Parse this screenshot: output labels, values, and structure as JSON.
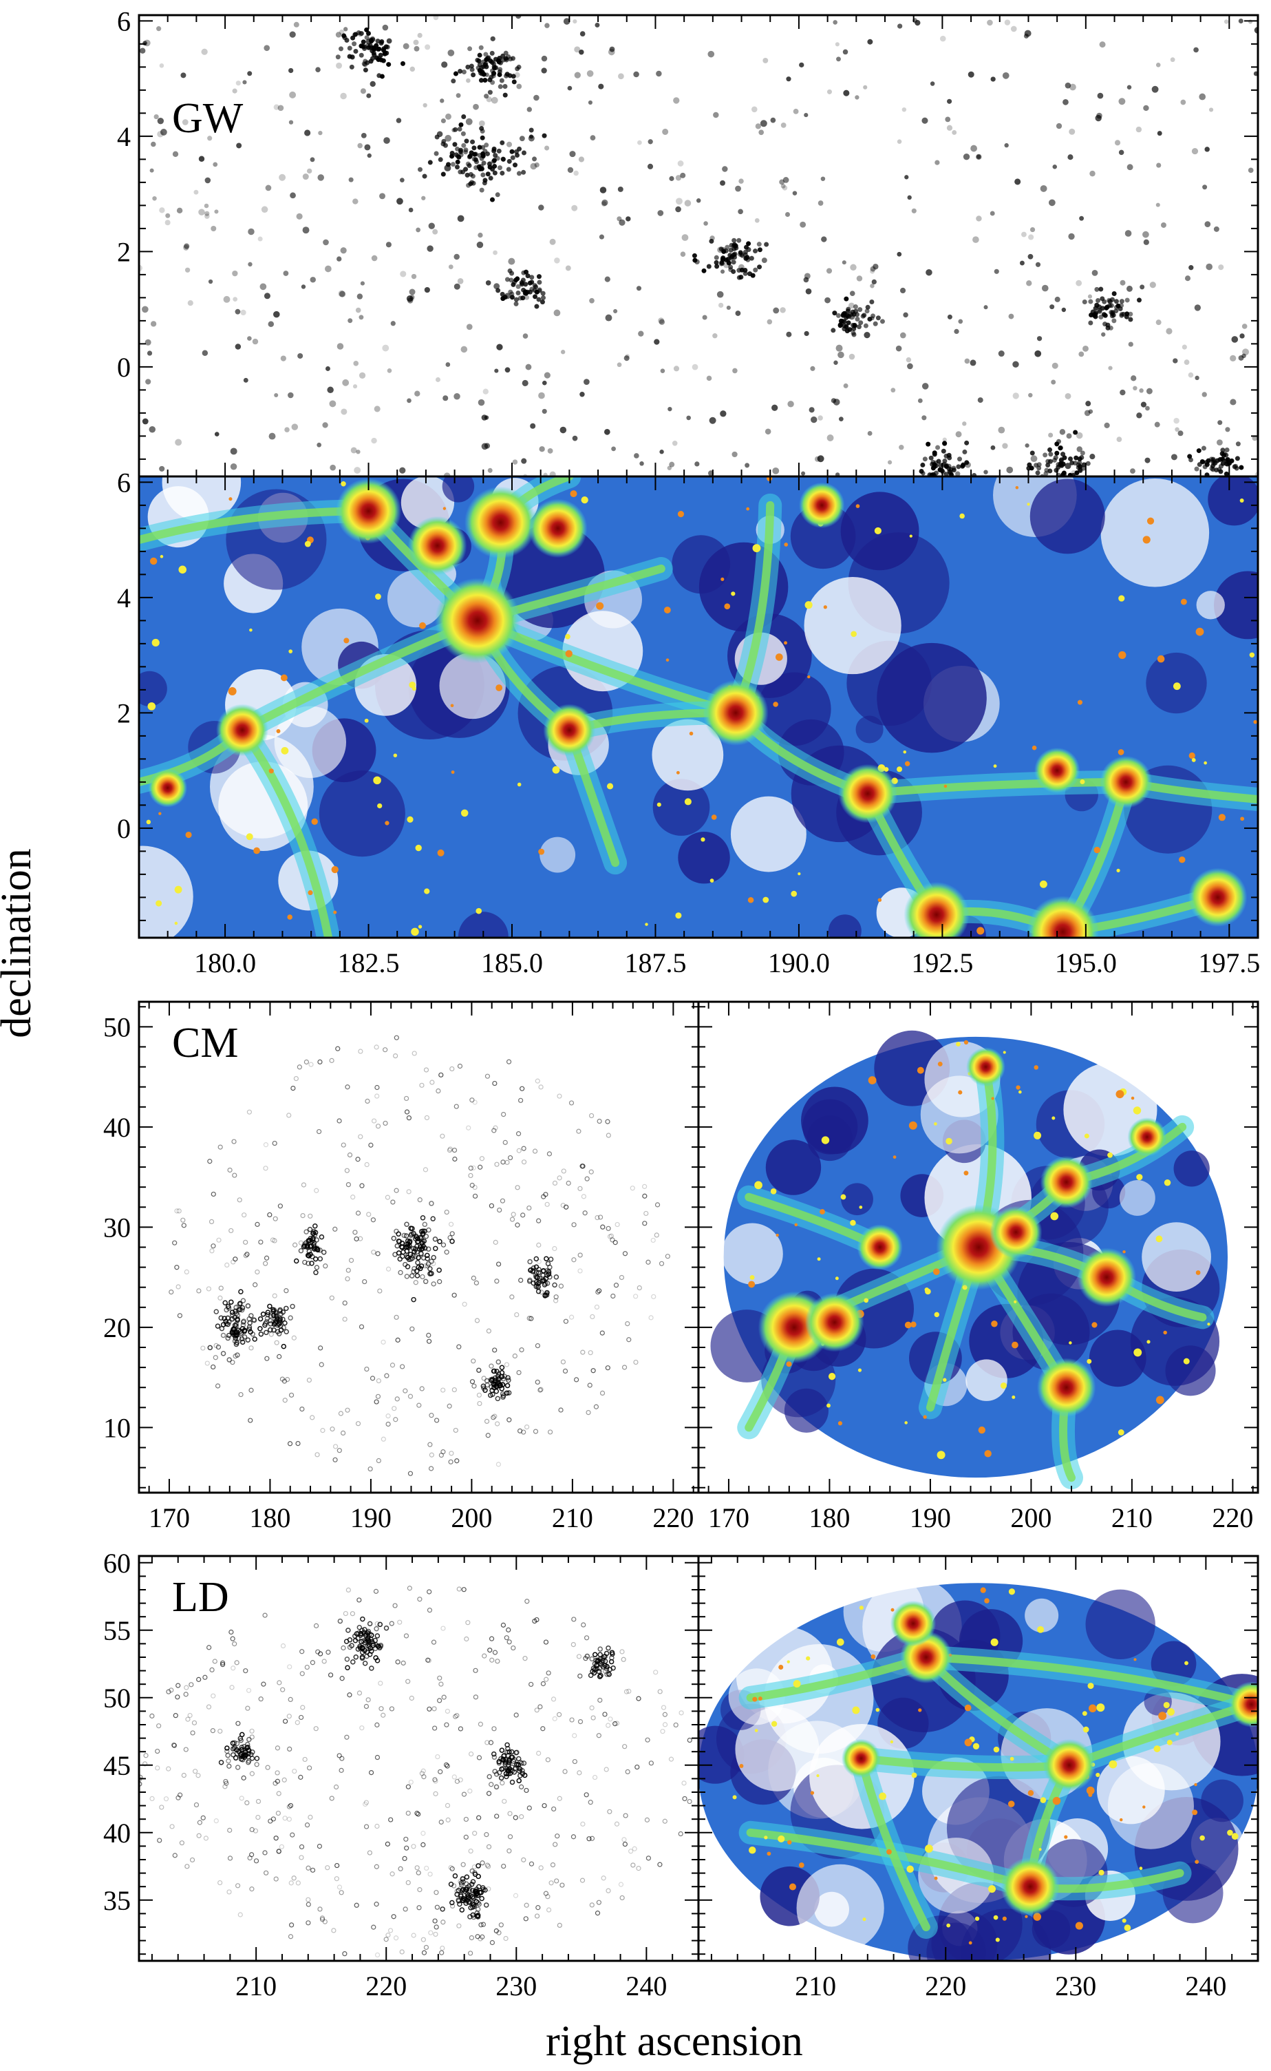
{
  "figure": {
    "ylabel": "declination",
    "xlabel": "right ascension"
  },
  "colors": {
    "point": "#000000",
    "void": "#ffffff",
    "dark_blue": "#1c1f8c",
    "mid_blue": "#2f6fd2",
    "cyan": "#3fd0e6",
    "green": "#7fe060",
    "yellow": "#f5ee3a",
    "orange": "#f08a1e",
    "red": "#b81414"
  },
  "chart_data": [
    {
      "type": "scatter",
      "panel": "GW-galaxies",
      "label": "GW",
      "xlim": [
        178.5,
        198.0
      ],
      "ylim": [
        -1.9,
        6.1
      ],
      "xticks": [],
      "yticks": [
        0,
        2,
        4,
        6
      ],
      "clusters": [
        {
          "x": 184.4,
          "y": 3.6,
          "weight": 1.0
        },
        {
          "x": 182.5,
          "y": 5.5,
          "weight": 0.5
        },
        {
          "x": 184.6,
          "y": 5.2,
          "weight": 0.6
        },
        {
          "x": 188.9,
          "y": 1.9,
          "weight": 0.5
        },
        {
          "x": 185.2,
          "y": 1.4,
          "weight": 0.3
        },
        {
          "x": 195.4,
          "y": 1.0,
          "weight": 0.4
        },
        {
          "x": 194.6,
          "y": -1.7,
          "weight": 0.5
        },
        {
          "x": 192.5,
          "y": -1.7,
          "weight": 0.4
        },
        {
          "x": 197.3,
          "y": -1.7,
          "weight": 0.3
        },
        {
          "x": 190.9,
          "y": 0.8,
          "weight": 0.3
        }
      ]
    },
    {
      "type": "heatmap",
      "panel": "GW-density",
      "label": "",
      "xlim": [
        178.5,
        198.0
      ],
      "ylim": [
        -1.9,
        6.1
      ],
      "xticks": [
        180.0,
        182.5,
        185.0,
        187.5,
        190.0,
        192.5,
        195.0,
        197.5
      ],
      "xticklabels": [
        "180.0",
        "182.5",
        "185.0",
        "187.5",
        "190.0",
        "192.5",
        "195.0",
        "197.5"
      ],
      "yticks": [
        0,
        2,
        4,
        6
      ],
      "nodes": [
        {
          "x": 184.4,
          "y": 3.6,
          "weight": 1.0
        },
        {
          "x": 182.5,
          "y": 5.5,
          "weight": 0.7
        },
        {
          "x": 184.8,
          "y": 5.3,
          "weight": 0.8
        },
        {
          "x": 185.8,
          "y": 5.2,
          "weight": 0.6
        },
        {
          "x": 183.7,
          "y": 4.9,
          "weight": 0.6
        },
        {
          "x": 188.9,
          "y": 2.0,
          "weight": 0.7
        },
        {
          "x": 180.3,
          "y": 1.7,
          "weight": 0.5
        },
        {
          "x": 186.0,
          "y": 1.7,
          "weight": 0.5
        },
        {
          "x": 191.2,
          "y": 0.6,
          "weight": 0.6
        },
        {
          "x": 195.7,
          "y": 0.8,
          "weight": 0.5
        },
        {
          "x": 194.5,
          "y": 1.0,
          "weight": 0.4
        },
        {
          "x": 194.6,
          "y": -1.8,
          "weight": 0.8
        },
        {
          "x": 192.4,
          "y": -1.5,
          "weight": 0.7
        },
        {
          "x": 197.3,
          "y": -1.2,
          "weight": 0.6
        },
        {
          "x": 190.4,
          "y": 5.6,
          "weight": 0.4
        },
        {
          "x": 179.0,
          "y": 0.7,
          "weight": 0.3
        }
      ],
      "filaments": [
        [
          184.4,
          3.6,
          188.9,
          2.0
        ],
        [
          188.9,
          2.0,
          191.2,
          0.6
        ],
        [
          191.2,
          0.6,
          195.7,
          0.8
        ],
        [
          195.7,
          0.8,
          198.0,
          0.5
        ],
        [
          184.4,
          3.6,
          182.5,
          5.5
        ],
        [
          184.4,
          3.6,
          184.8,
          5.3
        ],
        [
          184.8,
          5.3,
          186.0,
          6.1
        ],
        [
          184.4,
          3.6,
          180.3,
          1.7
        ],
        [
          180.3,
          1.7,
          178.5,
          0.8
        ],
        [
          180.3,
          1.7,
          181.8,
          -1.9
        ],
        [
          184.4,
          3.6,
          186.0,
          1.7
        ],
        [
          186.0,
          1.7,
          186.8,
          -0.6
        ],
        [
          191.2,
          0.6,
          192.4,
          -1.5
        ],
        [
          192.4,
          -1.5,
          194.6,
          -1.8
        ],
        [
          194.6,
          -1.8,
          197.3,
          -1.2
        ],
        [
          194.6,
          -1.8,
          195.7,
          0.8
        ],
        [
          188.9,
          2.0,
          189.5,
          5.6
        ],
        [
          186.0,
          1.7,
          188.9,
          2.0
        ],
        [
          182.5,
          5.5,
          178.5,
          5.0
        ],
        [
          184.4,
          3.6,
          187.6,
          4.5
        ]
      ]
    },
    {
      "type": "scatter",
      "panel": "CM-galaxies",
      "label": "CM",
      "xlim": [
        167,
        222.5
      ],
      "ylim": [
        3.5,
        52.5
      ],
      "xticks": [
        170,
        180,
        190,
        200,
        210,
        220
      ],
      "yticks": [
        10,
        20,
        30,
        40,
        50
      ],
      "footprint": {
        "center": [
          194.5,
          27
        ],
        "radius_x": 25,
        "radius_y": 22
      },
      "clusters": [
        {
          "x": 194.6,
          "y": 27.8,
          "weight": 1.0
        },
        {
          "x": 176.5,
          "y": 20.0,
          "weight": 0.7
        },
        {
          "x": 180.5,
          "y": 20.5,
          "weight": 0.4
        },
        {
          "x": 202.5,
          "y": 14.5,
          "weight": 0.4
        },
        {
          "x": 207.0,
          "y": 25.0,
          "weight": 0.3
        },
        {
          "x": 184.0,
          "y": 28.0,
          "weight": 0.3
        }
      ]
    },
    {
      "type": "heatmap",
      "panel": "CM-density",
      "label": "",
      "xlim": [
        167,
        222.5
      ],
      "ylim": [
        3.5,
        52.5
      ],
      "xticks": [
        170,
        180,
        190,
        200,
        210,
        220
      ],
      "yticks": [
        10,
        20,
        30,
        40,
        50
      ],
      "footprint": {
        "center": [
          194.5,
          27
        ],
        "radius_x": 25,
        "radius_y": 22
      },
      "nodes": [
        {
          "x": 194.8,
          "y": 28.0,
          "weight": 1.0
        },
        {
          "x": 176.5,
          "y": 20.0,
          "weight": 0.8
        },
        {
          "x": 180.5,
          "y": 20.5,
          "weight": 0.6
        },
        {
          "x": 207.5,
          "y": 25.0,
          "weight": 0.6
        },
        {
          "x": 203.5,
          "y": 14.0,
          "weight": 0.6
        },
        {
          "x": 203.5,
          "y": 34.5,
          "weight": 0.5
        },
        {
          "x": 198.5,
          "y": 29.5,
          "weight": 0.5
        },
        {
          "x": 185.0,
          "y": 28.0,
          "weight": 0.4
        },
        {
          "x": 195.5,
          "y": 46.0,
          "weight": 0.3
        },
        {
          "x": 211.5,
          "y": 39.0,
          "weight": 0.3
        }
      ],
      "filaments": [
        [
          194.8,
          28.0,
          176.5,
          20.0
        ],
        [
          194.8,
          28.0,
          203.5,
          34.5
        ],
        [
          203.5,
          34.5,
          215.0,
          40.0
        ],
        [
          194.8,
          28.0,
          203.5,
          14.0
        ],
        [
          203.5,
          14.0,
          204.0,
          5.0
        ],
        [
          194.8,
          28.0,
          207.5,
          25.0
        ],
        [
          194.8,
          28.0,
          190.0,
          12.0
        ],
        [
          194.8,
          28.0,
          195.5,
          46.0
        ],
        [
          176.5,
          20.0,
          172.0,
          10.0
        ],
        [
          185.0,
          28.0,
          172.0,
          33.0
        ],
        [
          207.5,
          25.0,
          217.0,
          21.0
        ]
      ]
    },
    {
      "type": "scatter",
      "panel": "LD-galaxies",
      "label": "LD",
      "xlim": [
        201,
        244
      ],
      "ylim": [
        30.5,
        60.5
      ],
      "xticks": [
        210,
        220,
        230,
        240
      ],
      "yticks": [
        35,
        40,
        45,
        50,
        55,
        60
      ],
      "footprint": {
        "center": [
          222.5,
          44.5
        ],
        "radius_x": 21.5,
        "radius_y": 14
      },
      "clusters": [
        {
          "x": 218.5,
          "y": 54.0,
          "weight": 0.6
        },
        {
          "x": 226.5,
          "y": 35.5,
          "weight": 0.7
        },
        {
          "x": 229.5,
          "y": 45.0,
          "weight": 0.5
        },
        {
          "x": 209.0,
          "y": 46.0,
          "weight": 0.3
        },
        {
          "x": 236.5,
          "y": 52.5,
          "weight": 0.3
        }
      ]
    },
    {
      "type": "heatmap",
      "panel": "LD-density",
      "label": "",
      "xlim": [
        201,
        244
      ],
      "ylim": [
        30.5,
        60.5
      ],
      "xticks": [
        210,
        220,
        230,
        240
      ],
      "yticks": [
        35,
        40,
        45,
        50,
        55,
        60
      ],
      "footprint": {
        "center": [
          222.5,
          44.5
        ],
        "radius_x": 21.5,
        "radius_y": 14
      },
      "nodes": [
        {
          "x": 226.5,
          "y": 36.0,
          "weight": 0.6
        },
        {
          "x": 218.5,
          "y": 53.0,
          "weight": 0.5
        },
        {
          "x": 229.5,
          "y": 45.0,
          "weight": 0.5
        },
        {
          "x": 217.5,
          "y": 55.5,
          "weight": 0.4
        },
        {
          "x": 243.5,
          "y": 49.5,
          "weight": 0.4
        },
        {
          "x": 213.5,
          "y": 45.5,
          "weight": 0.3
        }
      ],
      "filaments": [
        [
          218.5,
          53.0,
          243.5,
          49.5
        ],
        [
          229.5,
          45.0,
          226.5,
          36.0
        ],
        [
          218.5,
          53.0,
          229.5,
          45.0
        ],
        [
          229.5,
          45.0,
          243.5,
          49.5
        ],
        [
          226.5,
          36.0,
          205.0,
          40.0
        ],
        [
          213.5,
          45.5,
          229.5,
          45.0
        ],
        [
          218.5,
          53.0,
          205.0,
          50.0
        ],
        [
          226.5,
          36.0,
          238.0,
          37.0
        ],
        [
          213.5,
          45.5,
          218.5,
          33.0
        ]
      ]
    }
  ]
}
